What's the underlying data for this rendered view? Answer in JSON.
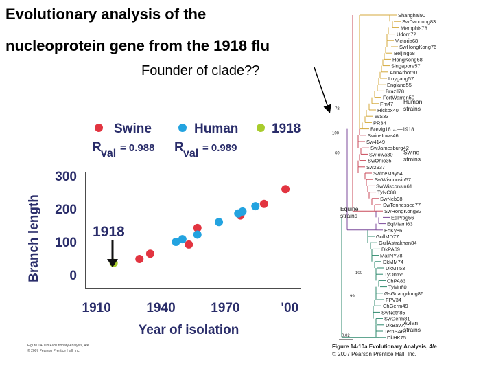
{
  "title_line1": "Evolutionary analysis of the",
  "title_line2": "nucleoprotein gene from the 1918 flu",
  "annotation": "Founder of clade??",
  "colors": {
    "swine": "#e23440",
    "human": "#23a3e0",
    "y1918": "#a8cc2c"
  },
  "chart_data": {
    "type": "scatter",
    "xlabel": "Year of isolation",
    "ylabel": "Branch length",
    "xlim": [
      1905,
      2005
    ],
    "ylim": [
      0,
      300
    ],
    "x_ticks": [
      "1910",
      "1940",
      "1970",
      "'00"
    ],
    "y_ticks": [
      "0",
      "100",
      "200",
      "300"
    ],
    "legend": [
      "Swine",
      "Human",
      "1918"
    ],
    "rval_swine": "R val = 0.988",
    "rval_human": "R val = 0.989",
    "rval_prefix": "R",
    "rval_sub": "val",
    "rval_swine_value": " = 0.988",
    "rval_human_value": " = 0.989",
    "arrow_label": "1918",
    "series": [
      {
        "name": "Swine",
        "points": [
          [
            1930,
            48
          ],
          [
            1935,
            64
          ],
          [
            1953,
            92
          ],
          [
            1957,
            142
          ],
          [
            1977,
            180
          ],
          [
            1988,
            215
          ],
          [
            1998,
            260
          ]
        ]
      },
      {
        "name": "Human",
        "points": [
          [
            1947,
            100
          ],
          [
            1950,
            108
          ],
          [
            1957,
            122
          ],
          [
            1967,
            160
          ],
          [
            1976,
            186
          ],
          [
            1978,
            192
          ],
          [
            1984,
            208
          ]
        ]
      },
      {
        "name": "1918",
        "points": [
          [
            1918,
            36
          ]
        ]
      }
    ]
  },
  "tree": {
    "taxa": [
      "Shanghai90",
      "SwDandong83",
      "Memphis78",
      "Udorn72",
      "Victoria68",
      "SwHongKong76",
      "Beijing68",
      "HongKong68",
      "Singapore57",
      "AnnArbor60",
      "Loygang57",
      "England55",
      "Brazil78",
      "FortWarren50",
      "Fm47",
      "Hickox40",
      "WS33",
      "PR34",
      "Brevig18 ←—1918",
      "SwineIowa46",
      "Sw4149",
      "SwJamesburg42",
      "SwIowa30",
      "SwOhio35",
      "Sw2937",
      "SwineMay54",
      "SwWisconsin57",
      "SwWisconsin61",
      "TyNC88",
      "SwNeb98",
      "SwTennessee77",
      "SwHongKong82",
      "EqPrag56",
      "EqMiami63",
      "EqKy86",
      "GullMD77",
      "GullAstrakhan84",
      "DkPA69",
      "MallNY78",
      "DkMM74",
      "DkMT53",
      "TyOnt65",
      "ChPA83",
      "TyMn80",
      "GsGuangdong86",
      "FPV34",
      "ChGerm49",
      "SwNeth85",
      "SwGerm81",
      "DkBav77",
      "TernSA61",
      "DkHK75"
    ],
    "groups": [
      "Human strains",
      "Swine strains",
      "Equine strains",
      "Avian strains"
    ],
    "bootstrap": [
      "78",
      "100",
      "60",
      "100",
      "99"
    ],
    "scale_label": "0.02",
    "caption": "Figure 14-10a Evolutionary Analysis, 4/e",
    "caption2": "© 2007 Pearson Prentice Hall, Inc."
  },
  "credit_line1": "Figure 14-10b Evolutionary Analysis, 4/e",
  "credit_line2": "© 2007 Pearson Prentice Hall, Inc."
}
